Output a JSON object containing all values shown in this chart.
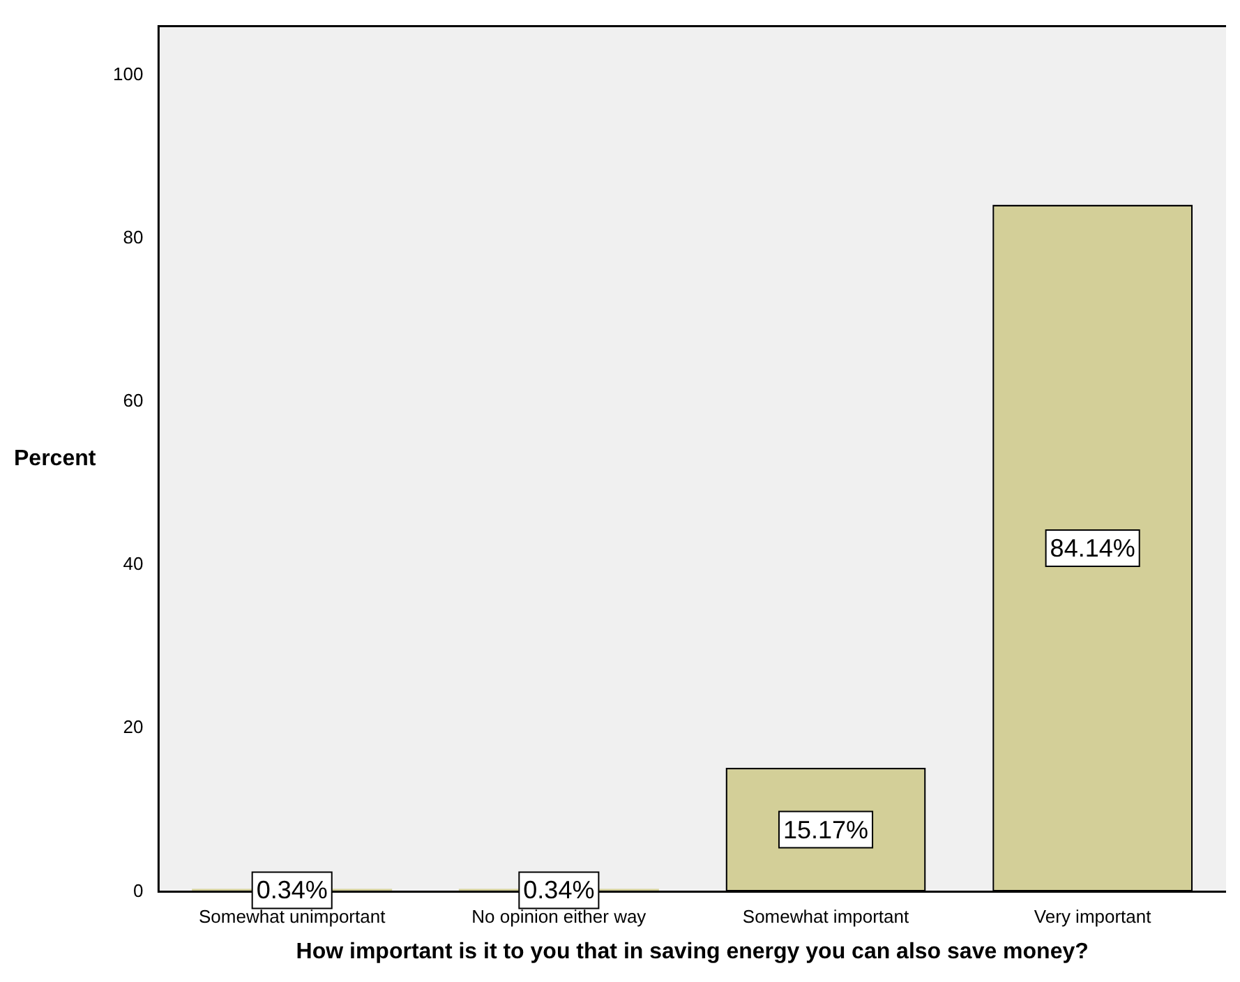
{
  "chart_data": {
    "type": "bar",
    "xlabel": "How important is it to you that in saving energy you can also save money?",
    "ylabel": "Percent",
    "categories": [
      "Somewhat unimportant",
      "No opinion either way",
      "Somewhat important",
      "Very important"
    ],
    "values": [
      0.34,
      0.34,
      15.17,
      84.14
    ],
    "value_labels": [
      "0.34%",
      "0.34%",
      "15.17%",
      "84.14%"
    ],
    "color": "#d3cf98",
    "ylim": [
      0,
      106
    ],
    "yticks": [
      0,
      20,
      40,
      60,
      80,
      100
    ],
    "grid": false,
    "legend": false
  }
}
